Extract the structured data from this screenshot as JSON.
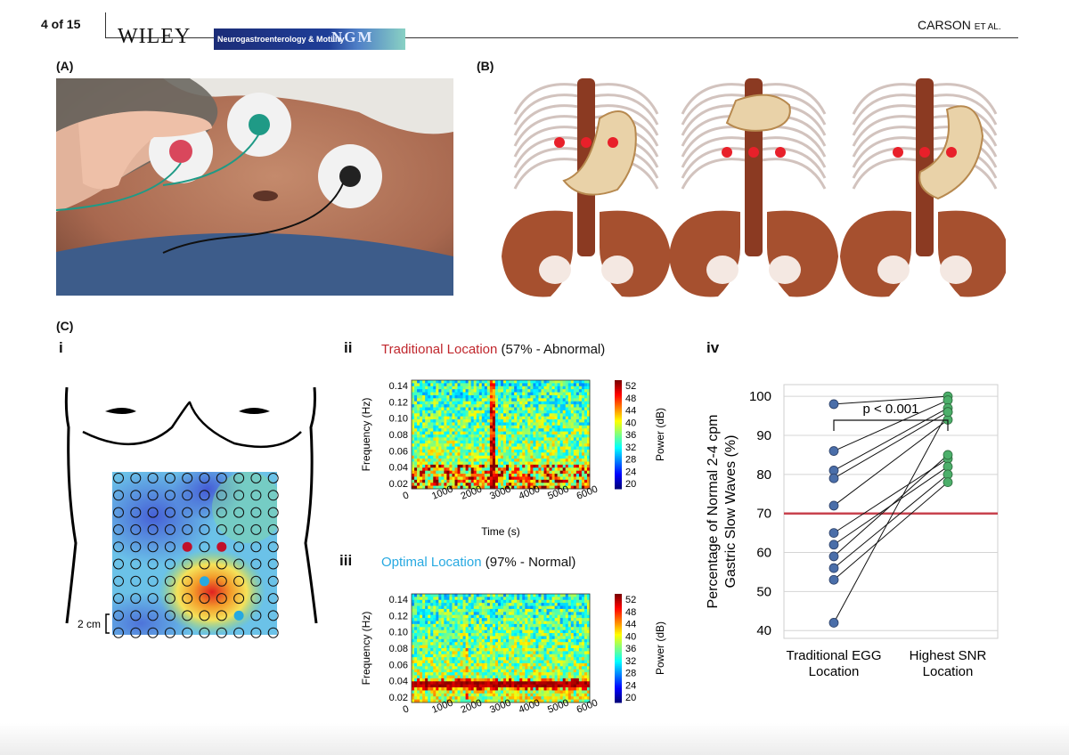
{
  "header": {
    "page_number": "4 of 15",
    "publisher": "WILEY",
    "journal_name": "Neurogastroenterology & Motility",
    "journal_abbrev": "NGM",
    "running_head_name": "CARSON",
    "running_head_suffix": "ET AL."
  },
  "figure": {
    "panel_a_label": "(A)",
    "panel_b_label": "(B)",
    "panel_c_label": "(C)",
    "sub_i": "i",
    "sub_ii": "ii",
    "sub_iii": "iii",
    "sub_iv": "iv",
    "scale_label": "2 cm",
    "ii_title_colored": "Traditional Location",
    "ii_title_rest": " (57% - Abnormal)",
    "iii_title_colored": "Optimal Location",
    "iii_title_rest": " (97% - Normal)",
    "colors": {
      "traditional": "#c0272d",
      "optimal": "#27a9e1",
      "blue_dot": "#4a6ea9",
      "green_dot": "#4caf6a",
      "threshold": "#c8424e"
    }
  },
  "spectrogram": {
    "ylabel": "Frequency (Hz)",
    "xlabel": "Time (s)",
    "yticks": [
      "0.14",
      "0.12",
      "0.10",
      "0.08",
      "0.06",
      "0.04",
      "0.02"
    ],
    "xticks": [
      "0",
      "1000",
      "2000",
      "3000",
      "4000",
      "5000",
      "6000"
    ],
    "colorbar_label": "Power (dB)",
    "colorbar_ticks": [
      "52",
      "48",
      "44",
      "40",
      "36",
      "32",
      "28",
      "24",
      "20"
    ]
  },
  "chart_data": {
    "type": "scatter",
    "title": "p < 0.001",
    "ylabel": "Percentage of Normal 2-4 cpm Gastric Slow Waves (%)",
    "ylabel_line1": "Percentage of Normal 2-4 cpm",
    "ylabel_line2": "Gastric Slow Waves (%)",
    "ylim": [
      38,
      103
    ],
    "yticks": [
      "100",
      "90",
      "80",
      "70",
      "60",
      "50",
      "40"
    ],
    "categories": [
      "Traditional EGG Location",
      "Highest SNR Location"
    ],
    "category_lines": [
      [
        "Traditional EGG",
        "Location"
      ],
      [
        "Highest SNR",
        "Location"
      ]
    ],
    "threshold": 70,
    "grid": true,
    "pairs": [
      [
        98,
        100
      ],
      [
        86,
        99
      ],
      [
        81,
        97
      ],
      [
        79,
        96
      ],
      [
        72,
        94
      ],
      [
        65,
        84
      ],
      [
        62,
        82
      ],
      [
        59,
        85
      ],
      [
        56,
        80
      ],
      [
        53,
        78
      ],
      [
        42,
        96
      ]
    ]
  }
}
